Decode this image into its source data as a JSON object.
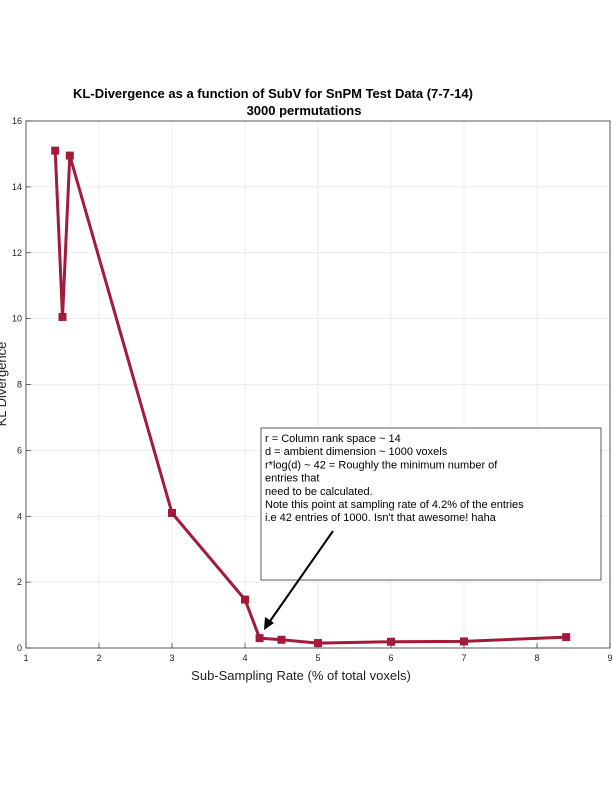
{
  "chart_data": {
    "type": "line",
    "title": "KL-Divergence as a function of SubV for SnPM Test Data (7-7-14)",
    "subtitle": "3000 permutations",
    "xlabel": "Sub-Sampling Rate (% of total voxels)",
    "ylabel": "KL Divergence",
    "xlim": [
      1,
      9
    ],
    "ylim": [
      0,
      16
    ],
    "xticks": [
      1,
      2,
      3,
      4,
      5,
      6,
      7,
      8,
      9
    ],
    "yticks": [
      0,
      2,
      4,
      6,
      8,
      10,
      12,
      14,
      16
    ],
    "grid": true,
    "series": [
      {
        "color": "#a31a3a",
        "x": [
          1.4,
          1.5,
          1.6,
          3.0,
          4.0,
          4.2,
          4.5,
          5.0,
          6.0,
          7.0,
          8.4
        ],
        "y": [
          15.1,
          10.05,
          14.95,
          4.1,
          1.47,
          0.3,
          0.25,
          0.15,
          0.19,
          0.2,
          0.33
        ]
      }
    ],
    "annotation": {
      "lines": [
        "r = Column rank space ~ 14",
        "d = ambient dimension ~ 1000 voxels",
        "r*log(d) ~ 42 = Roughly the minimum number of",
        "entries that",
        "need to be calculated.",
        "Note this point at sampling rate of 4.2% of the entries",
        "i.e 42 entries of 1000. Isn't that awesome! haha"
      ],
      "arrow_target": {
        "x": 4.25,
        "y": 0.5
      }
    }
  }
}
